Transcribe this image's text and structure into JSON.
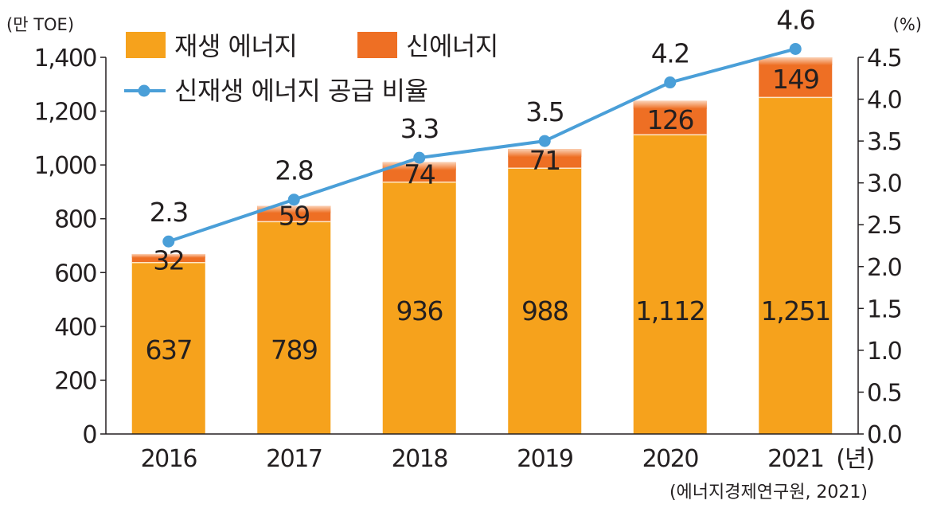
{
  "chart_data": {
    "type": "bar",
    "stacked": true,
    "categories": [
      "2016",
      "2017",
      "2018",
      "2019",
      "2020",
      "2021"
    ],
    "x_unit": "(년)",
    "y_left": {
      "unit": "(만 TOE)",
      "ylim": [
        0,
        1400
      ],
      "ticks": [
        "0",
        "200",
        "400",
        "600",
        "800",
        "1,000",
        "1,200",
        "1,400"
      ]
    },
    "y_right": {
      "unit": "(%)",
      "ylim": [
        0,
        4.5
      ],
      "ticks": [
        "0.0",
        "0.5",
        "1.0",
        "1.5",
        "2.0",
        "2.5",
        "3.0",
        "3.5",
        "4.0",
        "4.5"
      ]
    },
    "series": [
      {
        "name": "재생 에너지",
        "kind": "bar",
        "axis": "left",
        "color": "#f6a21c",
        "values": [
          637,
          789,
          936,
          988,
          1112,
          1251
        ],
        "labels": [
          "637",
          "789",
          "936",
          "988",
          "1,112",
          "1,251"
        ]
      },
      {
        "name": "신에너지",
        "kind": "bar",
        "axis": "left",
        "color": "#ee6f24",
        "values": [
          32,
          59,
          74,
          71,
          126,
          149
        ],
        "labels": [
          "32",
          "59",
          "74",
          "71",
          "126",
          "149"
        ]
      },
      {
        "name": "신재생 에너지 공급 비율",
        "kind": "line",
        "axis": "right",
        "color": "#4a9fd8",
        "values": [
          2.3,
          2.8,
          3.3,
          3.5,
          4.2,
          4.6
        ],
        "labels": [
          "2.3",
          "2.8",
          "3.3",
          "3.5",
          "4.2",
          "4.6"
        ]
      }
    ],
    "grid": false,
    "legend_position": "top-left",
    "source": "(에너지경제연구원, 2021)"
  }
}
